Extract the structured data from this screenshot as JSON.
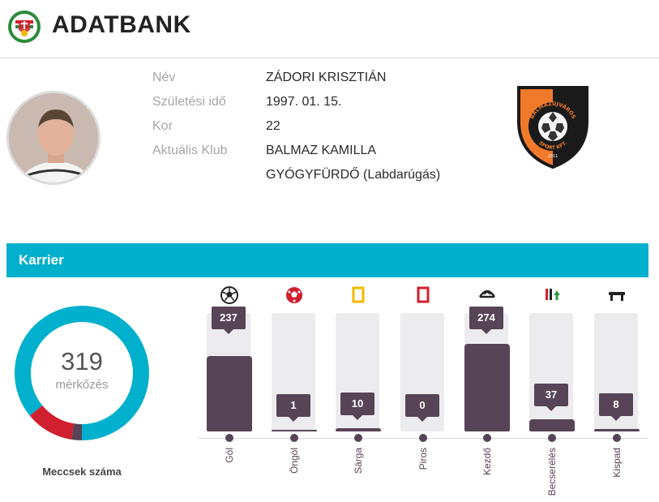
{
  "header": {
    "title": "ADATBANK"
  },
  "player": {
    "labels": {
      "name": "Név",
      "birth": "Születési idő",
      "age": "Kor",
      "club": "Aktuális Klub"
    },
    "name": "ZÁDORI KRISZTIÁN",
    "birth": "1997. 01. 15.",
    "age": "22",
    "club_line1": "BALMAZ KAMILLA",
    "club_line2": "GYÓGYFÜRDŐ (Labdarúgás)"
  },
  "club_logo": {
    "text_arc": "BALMAZÚJVÁROS",
    "text_bottom": "SPORT KFT.",
    "year": "2011"
  },
  "section": {
    "title": "Karrier"
  },
  "matches": {
    "total": "319",
    "unit": "mérkőzés",
    "caption": "Meccsek száma"
  },
  "colors": {
    "accent": "#00b0cc",
    "bar": "#574456",
    "track": "#ececef",
    "red": "#d01f2e",
    "yellow": "#f2b800",
    "donut_dark": "#574456"
  },
  "chart_data": {
    "type": "bar",
    "categories": [
      "Gól",
      "Öngól",
      "Sárga",
      "Piros",
      "Kezdő",
      "Becserélés",
      "Kispad"
    ],
    "values": [
      237,
      1,
      10,
      0,
      274,
      37,
      8
    ],
    "icons": [
      "ball-icon",
      "own-goal-ball-icon",
      "yellow-card-icon",
      "red-card-icon",
      "starter-icon",
      "substitution-icon",
      "bench-icon"
    ],
    "donut": {
      "total": 319,
      "segments": [
        {
          "name": "cyan",
          "value": 274,
          "color": "#00b0cc"
        },
        {
          "name": "red",
          "value": 37,
          "color": "#d01f2e"
        },
        {
          "name": "dark",
          "value": 8,
          "color": "#574456"
        }
      ]
    }
  }
}
